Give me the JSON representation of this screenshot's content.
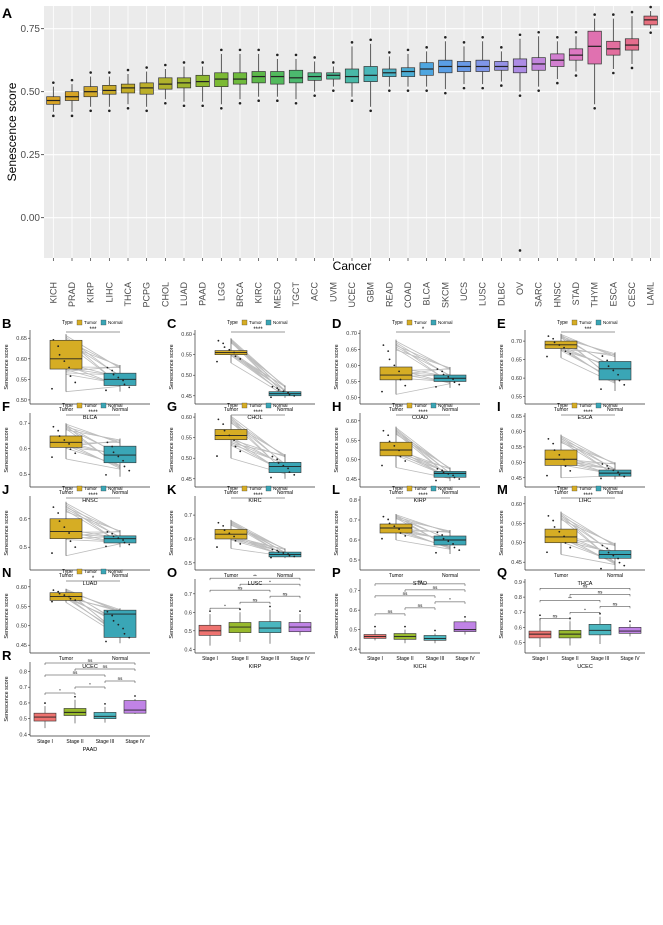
{
  "chart_data": [
    {
      "panel": "A",
      "type": "box",
      "xlabel": "Cancer",
      "ylabel": "Senescence score",
      "yticks": [
        "0.00",
        "0.25",
        "0.50",
        "0.75"
      ],
      "ylim": [
        -0.16,
        0.84
      ],
      "categories": [
        "KICH",
        "PRAD",
        "KIRP",
        "LIHC",
        "THCA",
        "PCPG",
        "CHOL",
        "LUAD",
        "PAAD",
        "LGG",
        "BRCA",
        "KIRC",
        "MESO",
        "TGCT",
        "ACC",
        "UVM",
        "UCEC",
        "GBM",
        "READ",
        "COAD",
        "BLCA",
        "SKCM",
        "UCS",
        "LUSC",
        "DLBC",
        "OV",
        "SARC",
        "HNSC",
        "STAD",
        "THYM",
        "ESCA",
        "CESC",
        "LAML"
      ],
      "colors": [
        "#d9a425",
        "#d7a426",
        "#d1a82a",
        "#c9ab28",
        "#c4ad26",
        "#bcaf2a",
        "#b0b22c",
        "#9fb52e",
        "#8eb82f",
        "#7cba34",
        "#6fbb3c",
        "#5db94a",
        "#52ba5c",
        "#4cb96e",
        "#4abb82",
        "#48bb94",
        "#49b9a7",
        "#4ab6b8",
        "#4bb2c5",
        "#4cacd4",
        "#4fa6e0",
        "#5a9fe6",
        "#699ae7",
        "#7f96e8",
        "#9692e6",
        "#ad8ce4",
        "#c286dc",
        "#d27fd0",
        "#dd78c2",
        "#e071b0",
        "#e36e9e",
        "#e56d8d",
        "#e86f7e"
      ],
      "medians": [
        0.465,
        0.48,
        0.5,
        0.505,
        0.515,
        0.515,
        0.53,
        0.535,
        0.54,
        0.55,
        0.55,
        0.56,
        0.56,
        0.555,
        0.56,
        0.565,
        0.56,
        0.565,
        0.575,
        0.58,
        0.59,
        0.6,
        0.6,
        0.6,
        0.6,
        0.6,
        0.61,
        0.625,
        0.645,
        0.68,
        0.67,
        0.685,
        0.785
      ],
      "q1": [
        0.45,
        0.465,
        0.48,
        0.49,
        0.495,
        0.49,
        0.51,
        0.515,
        0.52,
        0.52,
        0.53,
        0.535,
        0.53,
        0.535,
        0.545,
        0.55,
        0.535,
        0.54,
        0.56,
        0.56,
        0.565,
        0.575,
        0.58,
        0.58,
        0.585,
        0.575,
        0.585,
        0.6,
        0.625,
        0.61,
        0.645,
        0.665,
        0.765
      ],
      "q3": [
        0.48,
        0.5,
        0.52,
        0.525,
        0.53,
        0.535,
        0.555,
        0.555,
        0.565,
        0.575,
        0.575,
        0.58,
        0.58,
        0.585,
        0.575,
        0.575,
        0.59,
        0.6,
        0.59,
        0.595,
        0.615,
        0.625,
        0.62,
        0.625,
        0.62,
        0.63,
        0.635,
        0.65,
        0.67,
        0.74,
        0.7,
        0.71,
        0.8
      ],
      "wlo": [
        0.42,
        0.42,
        0.44,
        0.44,
        0.45,
        0.44,
        0.47,
        0.46,
        0.46,
        0.45,
        0.47,
        0.48,
        0.48,
        0.47,
        0.5,
        0.52,
        0.48,
        0.44,
        0.52,
        0.52,
        0.52,
        0.51,
        0.53,
        0.53,
        0.54,
        0.5,
        0.52,
        0.55,
        0.58,
        0.45,
        0.59,
        0.61,
        0.75
      ],
      "whi": [
        0.52,
        0.53,
        0.56,
        0.56,
        0.57,
        0.58,
        0.59,
        0.6,
        0.6,
        0.65,
        0.65,
        0.65,
        0.63,
        0.63,
        0.62,
        0.6,
        0.68,
        0.69,
        0.64,
        0.65,
        0.66,
        0.7,
        0.68,
        0.7,
        0.66,
        0.71,
        0.72,
        0.7,
        0.72,
        0.79,
        0.79,
        0.8,
        0.82
      ]
    },
    {
      "panel": "B",
      "type": "paired-box",
      "groups": [
        "Tumor",
        "Normal"
      ],
      "xlabel": "BLCA",
      "ylabel": "Senescence score",
      "yticks": [
        "0.50",
        "0.55",
        "0.60",
        "0.65"
      ],
      "ylim": [
        0.49,
        0.67
      ],
      "stats": [
        [
          0.52,
          0.575,
          0.6,
          0.645,
          0.66
        ],
        [
          0.52,
          0.535,
          0.55,
          0.565,
          0.585
        ]
      ],
      "sig": "***"
    },
    {
      "panel": "C",
      "type": "paired-box",
      "groups": [
        "Tumor",
        "Normal"
      ],
      "xlabel": "CHOL",
      "ylabel": "Senescence score",
      "yticks": [
        "0.45",
        "0.50",
        "0.55",
        "0.60"
      ],
      "ylim": [
        0.43,
        0.61
      ],
      "stats": [
        [
          0.53,
          0.55,
          0.555,
          0.56,
          0.59
        ],
        [
          0.445,
          0.45,
          0.455,
          0.46,
          0.475
        ]
      ],
      "sig": "****"
    },
    {
      "panel": "D",
      "type": "paired-box",
      "groups": [
        "Tumor",
        "Normal"
      ],
      "xlabel": "COAD",
      "ylabel": "Senescence score",
      "yticks": [
        "0.50",
        "0.55",
        "0.60",
        "0.65",
        "0.70"
      ],
      "ylim": [
        0.48,
        0.71
      ],
      "stats": [
        [
          0.51,
          0.555,
          0.57,
          0.595,
          0.68
        ],
        [
          0.53,
          0.55,
          0.56,
          0.57,
          0.595
        ]
      ],
      "sig": "*"
    },
    {
      "panel": "E",
      "type": "paired-box",
      "groups": [
        "Tumor",
        "Normal"
      ],
      "xlabel": "ESCA",
      "ylabel": "Senescence score",
      "yticks": [
        "0.55",
        "0.60",
        "0.65",
        "0.70"
      ],
      "ylim": [
        0.53,
        0.73
      ],
      "stats": [
        [
          0.655,
          0.68,
          0.69,
          0.7,
          0.72
        ],
        [
          0.565,
          0.595,
          0.625,
          0.645,
          0.67
        ]
      ],
      "sig": "***"
    },
    {
      "panel": "F",
      "type": "paired-box",
      "groups": [
        "Tumor",
        "Normal"
      ],
      "xlabel": "HNSC",
      "ylabel": "Senescence score",
      "yticks": [
        "0.5",
        "0.6",
        "0.7"
      ],
      "ylim": [
        0.45,
        0.74
      ],
      "stats": [
        [
          0.56,
          0.605,
          0.625,
          0.65,
          0.7
        ],
        [
          0.49,
          0.545,
          0.575,
          0.61,
          0.64
        ]
      ],
      "sig": "****"
    },
    {
      "panel": "G",
      "type": "paired-box",
      "groups": [
        "Tumor",
        "Normal"
      ],
      "xlabel": "KIRC",
      "ylabel": "Senescence score",
      "yticks": [
        "0.45",
        "0.50",
        "0.55",
        "0.60"
      ],
      "ylim": [
        0.43,
        0.61
      ],
      "stats": [
        [
          0.5,
          0.545,
          0.555,
          0.57,
          0.605
        ],
        [
          0.45,
          0.465,
          0.48,
          0.49,
          0.51
        ]
      ],
      "sig": "****"
    },
    {
      "panel": "H",
      "type": "paired-box",
      "groups": [
        "Tumor",
        "Normal"
      ],
      "xlabel": "KIRP",
      "ylabel": "Senescence score",
      "yticks": [
        "0.45",
        "0.50",
        "0.55",
        "0.60"
      ],
      "ylim": [
        0.43,
        0.62
      ],
      "stats": [
        [
          0.48,
          0.51,
          0.525,
          0.545,
          0.585
        ],
        [
          0.445,
          0.455,
          0.465,
          0.47,
          0.48
        ]
      ],
      "sig": "****"
    },
    {
      "panel": "I",
      "type": "paired-box",
      "groups": [
        "Tumor",
        "Normal"
      ],
      "xlabel": "LIHC",
      "ylabel": "Senescence score",
      "yticks": [
        "0.45",
        "0.50",
        "0.55",
        "0.60",
        "0.65"
      ],
      "ylim": [
        0.42,
        0.66
      ],
      "stats": [
        [
          0.45,
          0.49,
          0.51,
          0.54,
          0.59
        ],
        [
          0.445,
          0.455,
          0.465,
          0.475,
          0.5
        ]
      ],
      "sig": "****"
    },
    {
      "panel": "J",
      "type": "paired-box",
      "groups": [
        "Tumor",
        "Normal"
      ],
      "xlabel": "LUAD",
      "ylabel": "Senescence score",
      "yticks": [
        "0.5",
        "0.6"
      ],
      "ylim": [
        0.42,
        0.68
      ],
      "stats": [
        [
          0.47,
          0.53,
          0.555,
          0.6,
          0.66
        ],
        [
          0.5,
          0.515,
          0.53,
          0.54,
          0.56
        ]
      ],
      "sig": "****"
    },
    {
      "panel": "K",
      "type": "paired-box",
      "groups": [
        "Tumor",
        "Normal"
      ],
      "xlabel": "LUSC",
      "ylabel": "Senescence score",
      "yticks": [
        "0.5",
        "0.6",
        "0.7"
      ],
      "ylim": [
        0.47,
        0.78
      ],
      "stats": [
        [
          0.56,
          0.6,
          0.62,
          0.64,
          0.68
        ],
        [
          0.52,
          0.525,
          0.535,
          0.545,
          0.56
        ]
      ],
      "sig": "****"
    },
    {
      "panel": "L",
      "type": "paired-box",
      "groups": [
        "Tumor",
        "Normal"
      ],
      "xlabel": "STAD",
      "ylabel": "Senescence score",
      "yticks": [
        "0.5",
        "0.6",
        "0.7",
        "0.8"
      ],
      "ylim": [
        0.45,
        0.82
      ],
      "stats": [
        [
          0.6,
          0.635,
          0.66,
          0.68,
          0.73
        ],
        [
          0.53,
          0.575,
          0.6,
          0.62,
          0.65
        ]
      ],
      "sig": "****"
    },
    {
      "panel": "M",
      "type": "paired-box",
      "groups": [
        "Tumor",
        "Normal"
      ],
      "xlabel": "THCA",
      "ylabel": "Senescence score",
      "yticks": [
        "0.45",
        "0.50",
        "0.55",
        "0.60"
      ],
      "ylim": [
        0.43,
        0.62
      ],
      "stats": [
        [
          0.47,
          0.5,
          0.515,
          0.535,
          0.58
        ],
        [
          0.43,
          0.46,
          0.47,
          0.48,
          0.5
        ]
      ],
      "sig": "****"
    },
    {
      "panel": "N",
      "type": "paired-box",
      "groups": [
        "Tumor",
        "Normal"
      ],
      "xlabel": "UCEC",
      "ylabel": "Senescence score",
      "yticks": [
        "0.45",
        "0.50",
        "0.55",
        "0.60"
      ],
      "ylim": [
        0.43,
        0.62
      ],
      "stats": [
        [
          0.56,
          0.565,
          0.575,
          0.585,
          0.595
        ],
        [
          0.455,
          0.47,
          0.53,
          0.54,
          0.545
        ]
      ],
      "sig": "*"
    },
    {
      "panel": "O",
      "type": "stage-box",
      "groups": [
        "Stage I",
        "Stage II",
        "Stage III",
        "Stage IV"
      ],
      "colors": [
        "#ee7370",
        "#97b92c",
        "#4ab6bf",
        "#c083e6"
      ],
      "xlabel": "KIRP",
      "ylabel": "Senescence score",
      "yticks": [
        "0.4",
        "0.5",
        "0.6",
        "0.7"
      ],
      "ylim": [
        0.38,
        0.78
      ],
      "stats": [
        [
          0.42,
          0.475,
          0.5,
          0.53,
          0.59
        ],
        [
          0.44,
          0.49,
          0.52,
          0.545,
          0.6
        ],
        [
          0.43,
          0.49,
          0.515,
          0.55,
          0.615
        ],
        [
          0.475,
          0.495,
          0.52,
          0.545,
          0.59
        ]
      ],
      "brackets": [
        "*",
        "ns",
        "**",
        "ns",
        "*",
        "ns"
      ]
    },
    {
      "panel": "P",
      "type": "stage-box",
      "groups": [
        "Stage I",
        "Stage II",
        "Stage III",
        "Stage IV"
      ],
      "colors": [
        "#ee7370",
        "#97b92c",
        "#4ab6bf",
        "#c083e6"
      ],
      "xlabel": "KICH",
      "ylabel": "Senescence score",
      "yticks": [
        "0.4",
        "0.5",
        "0.6",
        "0.7"
      ],
      "ylim": [
        0.38,
        0.76
      ],
      "stats": [
        [
          0.445,
          0.455,
          0.465,
          0.475,
          0.5
        ],
        [
          0.43,
          0.45,
          0.465,
          0.48,
          0.5
        ],
        [
          0.43,
          0.445,
          0.455,
          0.47,
          0.48
        ],
        [
          0.475,
          0.49,
          0.5,
          0.54,
          0.55
        ]
      ],
      "brackets": [
        "ns",
        "ns",
        "ns",
        "ns",
        "ns",
        "*"
      ]
    },
    {
      "panel": "Q",
      "type": "stage-box",
      "groups": [
        "Stage I",
        "Stage II",
        "Stage III",
        "Stage IV"
      ],
      "colors": [
        "#ee7370",
        "#97b92c",
        "#4ab6bf",
        "#c083e6"
      ],
      "xlabel": "UCEC",
      "ylabel": "Senescence score",
      "yticks": [
        "0.5",
        "0.6",
        "0.7",
        "0.8",
        "0.9"
      ],
      "ylim": [
        0.43,
        0.92
      ],
      "stats": [
        [
          0.47,
          0.53,
          0.555,
          0.575,
          0.66
        ],
        [
          0.48,
          0.53,
          0.555,
          0.58,
          0.64
        ],
        [
          0.49,
          0.55,
          0.58,
          0.62,
          0.67
        ],
        [
          0.54,
          0.56,
          0.575,
          0.6,
          0.62
        ]
      ],
      "brackets": [
        "ns",
        "**",
        "ns",
        "*",
        "ns",
        "ns"
      ]
    },
    {
      "panel": "R",
      "type": "stage-box",
      "groups": [
        "Stage I",
        "Stage II",
        "Stage III",
        "Stage IV"
      ],
      "colors": [
        "#ee7370",
        "#97b92c",
        "#4ab6bf",
        "#c083e6"
      ],
      "xlabel": "PAAD",
      "ylabel": "Senescence score",
      "yticks": [
        "0.4",
        "0.5",
        "0.6",
        "0.7",
        "0.8"
      ],
      "ylim": [
        0.39,
        0.86
      ],
      "stats": [
        [
          0.44,
          0.485,
          0.51,
          0.535,
          0.58
        ],
        [
          0.47,
          0.52,
          0.54,
          0.565,
          0.62
        ],
        [
          0.475,
          0.5,
          0.515,
          0.54,
          0.575
        ],
        [
          0.53,
          0.535,
          0.555,
          0.615,
          0.625
        ]
      ],
      "brackets": [
        "*",
        "ns",
        "ns",
        "*",
        "ns",
        "ns"
      ]
    }
  ],
  "legend": {
    "title": "Type",
    "items": [
      "Tumor",
      "Normal"
    ],
    "colors": [
      "#d6ad24",
      "#3aa6b6"
    ]
  }
}
